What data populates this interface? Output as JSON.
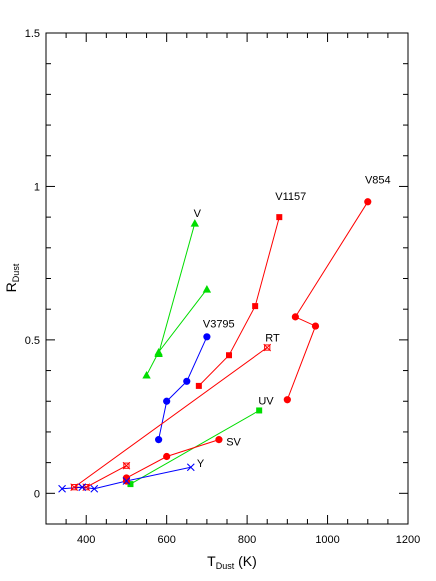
{
  "chart_data": {
    "type": "scatter",
    "title": "",
    "xlabel": {
      "main": "T",
      "sub": "Dust",
      "unit": "(K)"
    },
    "ylabel": {
      "main": "R",
      "sub": "Dust"
    },
    "xlim": [
      300,
      1200
    ],
    "ylim": [
      -0.1,
      1.5
    ],
    "xticks": [
      400,
      600,
      800,
      1000,
      1200
    ],
    "yticks": [
      0,
      0.5,
      1,
      1.5
    ],
    "ytick_labels": [
      "0",
      "0.5",
      "1",
      "1.5"
    ],
    "grid": false,
    "series": [
      {
        "name": "V854",
        "color": "#ff0000",
        "marker": "circle",
        "x": [
          1100,
          920,
          970,
          900
        ],
        "y": [
          0.95,
          0.575,
          0.545,
          0.305
        ]
      },
      {
        "name": "V1157",
        "color": "#ff0000",
        "marker": "square",
        "x": [
          880,
          820,
          755,
          680
        ],
        "y": [
          0.9,
          0.61,
          0.45,
          0.35
        ]
      },
      {
        "name": "V",
        "color": "#00dd00",
        "marker": "triangle",
        "x": [
          670,
          580
        ],
        "y": [
          0.88,
          0.455
        ]
      },
      {
        "name": "",
        "color": "#00dd00",
        "marker": "triangle",
        "x": [
          700,
          580,
          550
        ],
        "y": [
          0.665,
          0.46,
          0.385
        ]
      },
      {
        "name": "V3795",
        "color": "#0000ff",
        "marker": "circle",
        "x": [
          700,
          650,
          600,
          580
        ],
        "y": [
          0.51,
          0.365,
          0.3,
          0.175
        ]
      },
      {
        "name": "RT",
        "color": "#ff0000",
        "marker": "star",
        "x": [
          850,
          370,
          400,
          500
        ],
        "y": [
          0.475,
          0.02,
          0.02,
          0.09
        ]
      },
      {
        "name": "UV",
        "color": "#00dd00",
        "marker": "square",
        "x": [
          830,
          510
        ],
        "y": [
          0.27,
          0.03
        ]
      },
      {
        "name": "SV",
        "color": "#ff0000",
        "marker": "circle",
        "x": [
          730,
          600,
          500,
          500
        ],
        "y": [
          0.175,
          0.12,
          0.05,
          0.04
        ]
      },
      {
        "name": "Y",
        "color": "#0000ff",
        "marker": "x",
        "x": [
          660,
          500,
          420,
          390,
          340
        ],
        "y": [
          0.085,
          0.04,
          0.015,
          0.02,
          0.015
        ]
      }
    ],
    "labels": [
      {
        "text": "V854",
        "x": 1093,
        "y": 1.01
      },
      {
        "text": "V1157",
        "x": 870,
        "y": 0.955
      },
      {
        "text": "V",
        "x": 667,
        "y": 0.9
      },
      {
        "text": "V3795",
        "x": 690,
        "y": 0.54
      },
      {
        "text": "RT",
        "x": 845,
        "y": 0.495
      },
      {
        "text": "UV",
        "x": 828,
        "y": 0.29
      },
      {
        "text": "SV",
        "x": 748,
        "y": 0.155
      },
      {
        "text": "Y",
        "x": 675,
        "y": 0.085
      }
    ]
  }
}
